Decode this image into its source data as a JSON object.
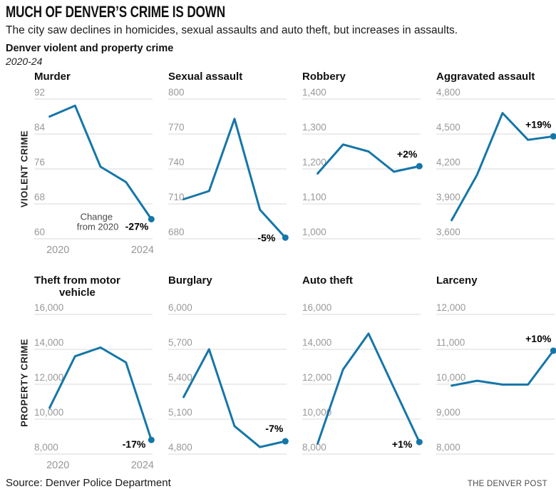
{
  "header": {
    "title": "MUCH OF DENVER’S CRIME IS DOWN",
    "subtitle": "The city saw declines in homicides, sexual assaults and auto theft, but increases in assaults.",
    "chart_title": "Denver violent and property crime",
    "period": "2020-24"
  },
  "sections": {
    "violent": "VIOLENT CRIME",
    "property": "PROPERTY CRIME"
  },
  "footer": {
    "source": "Source: Denver Police Department",
    "brand": "THE DENVER POST"
  },
  "colors": {
    "line": "#1576a8",
    "grid": "#d9d9d9",
    "tick": "#999999",
    "pct": "#000000",
    "annotation": "#4a4a4a"
  },
  "chart_data": [
    {
      "type": "line",
      "title": "Murder",
      "title_display": "Murder",
      "section": "VIOLENT CRIME",
      "x": [
        2020,
        2021,
        2022,
        2023,
        2024
      ],
      "values": [
        88,
        90.5,
        76.5,
        73,
        64.5
      ],
      "ylim": [
        60,
        92
      ],
      "yticks": [
        92,
        84,
        76,
        68,
        60
      ],
      "ytick_labels": [
        "92",
        "84",
        "76",
        "68",
        "60"
      ],
      "pct_change": "-27%",
      "pct_label_placement": "left",
      "pct_offset": [
        -4,
        15
      ],
      "x_axis_labels": [
        "2020",
        "2024"
      ],
      "annotation": {
        "lines": [
          "Change",
          "from 2020"
        ]
      },
      "grid": true,
      "legend": false
    },
    {
      "type": "line",
      "title": "Sexual assault",
      "title_display": "Sexual assault",
      "section": "VIOLENT CRIME",
      "x": [
        2020,
        2021,
        2022,
        2023,
        2024
      ],
      "values": [
        714,
        721,
        783,
        705,
        681
      ],
      "ylim": [
        680,
        800
      ],
      "yticks": [
        800,
        770,
        740,
        710,
        680
      ],
      "ytick_labels": [
        "800",
        "770",
        "740",
        "710",
        "680"
      ],
      "pct_change": "-5%",
      "pct_label_placement": "left",
      "pct_offset": [
        -14,
        5
      ],
      "x_axis_labels": null,
      "annotation": null,
      "grid": true,
      "legend": false
    },
    {
      "type": "line",
      "title": "Robbery",
      "title_display": "Robbery",
      "section": "VIOLENT CRIME",
      "x": [
        2020,
        2021,
        2022,
        2023,
        2024
      ],
      "values": [
        1187,
        1270,
        1250,
        1192,
        1208
      ],
      "ylim": [
        1000,
        1400
      ],
      "yticks": [
        1400,
        1300,
        1200,
        1100,
        1000
      ],
      "ytick_labels": [
        "1,400",
        "1,300",
        "1,200",
        "1,100",
        "1,000"
      ],
      "pct_change": "+2%",
      "pct_label_placement": "above",
      "pct_offset": [
        -3,
        -12
      ],
      "x_axis_labels": null,
      "annotation": null,
      "grid": true,
      "legend": false
    },
    {
      "type": "line",
      "title": "Aggravated assault",
      "title_display": "Aggravated assault",
      "section": "VIOLENT CRIME",
      "x": [
        2020,
        2021,
        2022,
        2023,
        2024
      ],
      "values": [
        3760,
        4150,
        4680,
        4450,
        4480
      ],
      "ylim": [
        3600,
        4800
      ],
      "yticks": [
        4800,
        4500,
        4200,
        3900,
        3600
      ],
      "ytick_labels": [
        "4,800",
        "4,500",
        "4,200",
        "3,900",
        "3,600"
      ],
      "pct_change": "+19%",
      "pct_label_placement": "above",
      "pct_offset": [
        -3,
        -12
      ],
      "x_axis_labels": null,
      "annotation": null,
      "grid": true,
      "legend": false
    },
    {
      "type": "line",
      "title": "Theft from motor vehicle",
      "title_display": "Theft from motor\nvehicle",
      "section": "PROPERTY CRIME",
      "x": [
        2020,
        2021,
        2022,
        2023,
        2024
      ],
      "values": [
        10650,
        13600,
        14100,
        13250,
        8810
      ],
      "ylim": [
        8000,
        16000
      ],
      "yticks": [
        16000,
        14000,
        12000,
        10000,
        8000
      ],
      "ytick_labels": [
        "16,000",
        "14,000",
        "12,000",
        "10,000",
        "8,000"
      ],
      "pct_change": "-17%",
      "pct_label_placement": "left",
      "pct_offset": [
        -8,
        11
      ],
      "x_axis_labels": [
        "2020",
        "2024"
      ],
      "annotation": null,
      "grid": true,
      "legend": false
    },
    {
      "type": "line",
      "title": "Burglary",
      "title_display": "Burglary",
      "section": "PROPERTY CRIME",
      "x": [
        2020,
        2021,
        2022,
        2023,
        2024
      ],
      "values": [
        5290,
        5700,
        5040,
        4860,
        4910
      ],
      "ylim": [
        4800,
        6000
      ],
      "yticks": [
        6000,
        5700,
        5400,
        5100,
        4800
      ],
      "ytick_labels": [
        "6,000",
        "5,700",
        "5,400",
        "5,100",
        "4,800"
      ],
      "pct_change": "-7%",
      "pct_label_placement": "above",
      "pct_offset": [
        -3,
        -13
      ],
      "x_axis_labels": null,
      "annotation": null,
      "grid": true,
      "legend": false
    },
    {
      "type": "line",
      "title": "Auto theft",
      "title_display": "Auto theft",
      "section": "PROPERTY CRIME",
      "x": [
        2020,
        2021,
        2022,
        2023,
        2024
      ],
      "values": [
        8600,
        12850,
        14900,
        11780,
        8690
      ],
      "ylim": [
        8000,
        16000
      ],
      "yticks": [
        16000,
        14000,
        12000,
        10000,
        8000
      ],
      "ytick_labels": [
        "16,000",
        "14,000",
        "12,000",
        "10,000",
        "8,000"
      ],
      "pct_change": "+1%",
      "pct_label_placement": "left",
      "pct_offset": [
        -10,
        8
      ],
      "x_axis_labels": null,
      "annotation": null,
      "grid": true,
      "legend": false
    },
    {
      "type": "line",
      "title": "Larceny",
      "title_display": "Larceny",
      "section": "PROPERTY CRIME",
      "x": [
        2020,
        2021,
        2022,
        2023,
        2024
      ],
      "values": [
        9960,
        10100,
        9990,
        9990,
        10960
      ],
      "ylim": [
        8000,
        12000
      ],
      "yticks": [
        12000,
        11000,
        10000,
        9000,
        8000
      ],
      "ytick_labels": [
        "12,000",
        "11,000",
        "10,000",
        "9,000",
        "8,000"
      ],
      "pct_change": "+10%",
      "pct_label_placement": "above",
      "pct_offset": [
        -3,
        -12
      ],
      "x_axis_labels": null,
      "annotation": null,
      "grid": true,
      "legend": false
    }
  ]
}
